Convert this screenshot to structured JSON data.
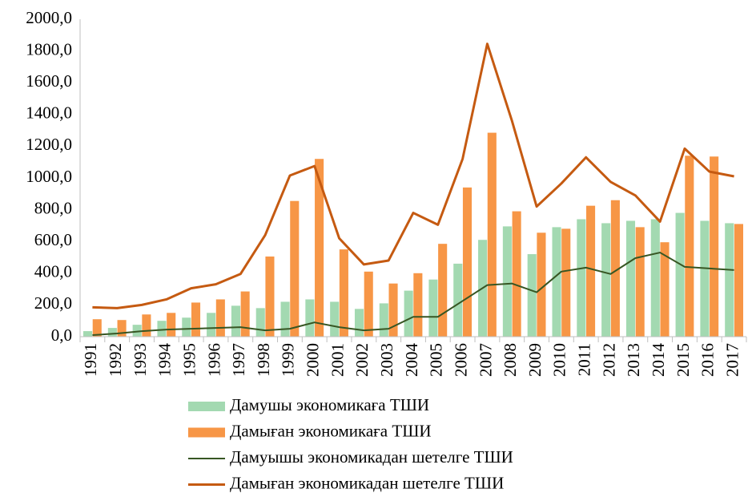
{
  "chart_data": {
    "type": "bar",
    "categories": [
      "1991",
      "1992",
      "1993",
      "1994",
      "1995",
      "1996",
      "1997",
      "1998",
      "1999",
      "2000",
      "2001",
      "2002",
      "2003",
      "2004",
      "2005",
      "2006",
      "2007",
      "2008",
      "2009",
      "2010",
      "2011",
      "2012",
      "2013",
      "2014",
      "2015",
      "2016",
      "2017"
    ],
    "series": [
      {
        "name": "Дамушы экономикаға ТШИ",
        "type": "bar",
        "color": "#a3d9b1",
        "values": [
          35,
          55,
          75,
          100,
          120,
          150,
          195,
          180,
          220,
          235,
          220,
          175,
          210,
          290,
          360,
          460,
          610,
          695,
          520,
          690,
          740,
          715,
          730,
          740,
          780,
          730,
          715
        ]
      },
      {
        "name": "Дамыған экономикаға ТШИ",
        "type": "bar",
        "color": "#f79646",
        "values": [
          110,
          105,
          140,
          150,
          215,
          235,
          285,
          505,
          855,
          1120,
          550,
          410,
          335,
          400,
          585,
          940,
          1285,
          790,
          655,
          680,
          825,
          860,
          690,
          595,
          1140,
          1135,
          710
        ]
      },
      {
        "name": "Дамуышы экономикадан шетелге ТШИ",
        "type": "line",
        "color": "#375623",
        "values": [
          10,
          20,
          35,
          45,
          50,
          55,
          60,
          40,
          50,
          90,
          60,
          40,
          50,
          125,
          125,
          225,
          325,
          335,
          280,
          410,
          435,
          395,
          495,
          530,
          440,
          430,
          420
        ]
      },
      {
        "name": "Дамыған экономикадан шетелге ТШИ",
        "type": "line",
        "color": "#c55a11",
        "values": [
          185,
          180,
          200,
          235,
          305,
          330,
          395,
          640,
          1015,
          1075,
          620,
          455,
          480,
          780,
          705,
          1120,
          1845,
          1360,
          820,
          965,
          1130,
          975,
          890,
          725,
          1185,
          1040,
          1010
        ]
      }
    ],
    "ylim": [
      0,
      2000
    ],
    "yticks": [
      {
        "value": 0,
        "label": "0,0"
      },
      {
        "value": 200,
        "label": "200,0"
      },
      {
        "value": 400,
        "label": "400,0"
      },
      {
        "value": 600,
        "label": "600,0"
      },
      {
        "value": 800,
        "label": "800,0"
      },
      {
        "value": 1000,
        "label": "1000,0"
      },
      {
        "value": 1200,
        "label": "1200,0"
      },
      {
        "value": 1400,
        "label": "1400,0"
      },
      {
        "value": 1600,
        "label": "1600,0"
      },
      {
        "value": 1800,
        "label": "1800,0"
      },
      {
        "value": 2000,
        "label": "2000,0"
      }
    ],
    "grid": false,
    "legend": "bottom"
  }
}
